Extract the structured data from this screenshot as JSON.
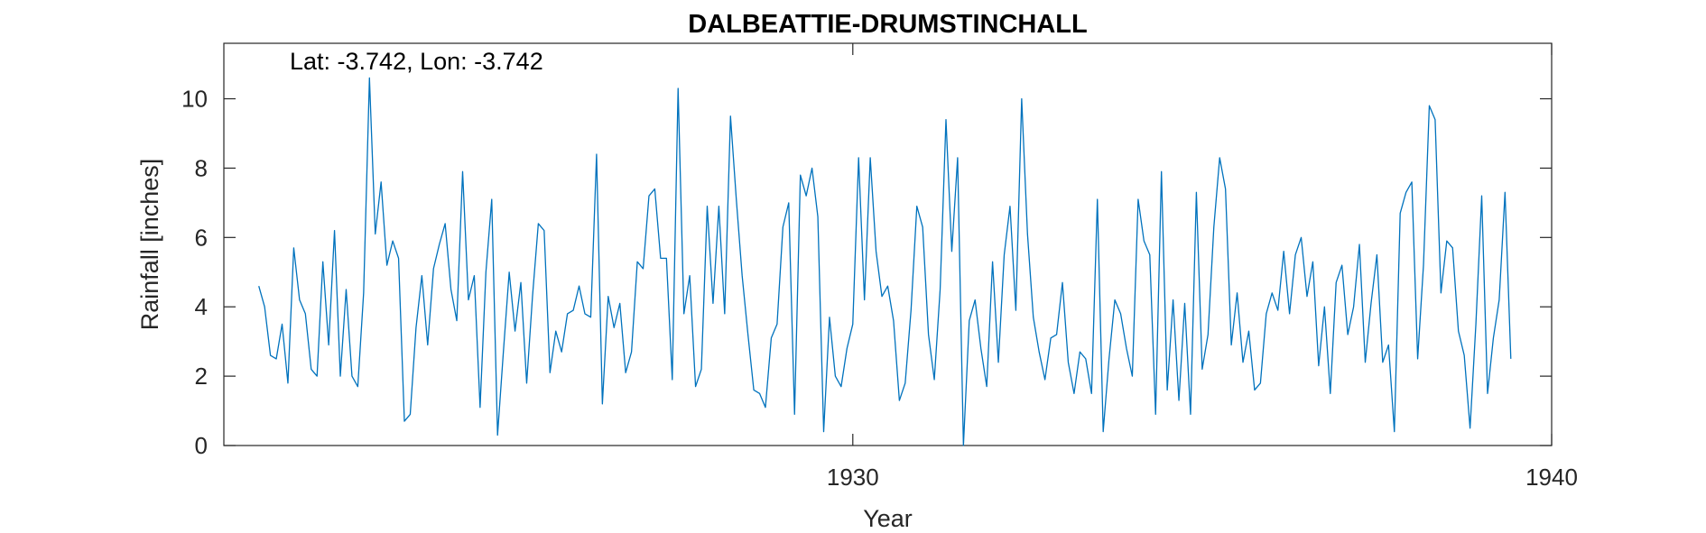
{
  "chart_data": {
    "type": "line",
    "title": "DALBEATTIE-DRUMSTINCHALL",
    "xlabel": "Year",
    "ylabel": "Rainfall [inches]",
    "annotation": "Lat: -3.742, Lon: -3.742",
    "xlim": [
      1921.0,
      1940.0
    ],
    "ylim": [
      0,
      11.6
    ],
    "xticks": [
      1930,
      1940
    ],
    "yticks": [
      0,
      2,
      4,
      6,
      8,
      10
    ],
    "grid": false,
    "legend": "none",
    "line_color": "#0072BD",
    "x_start": 1921.5,
    "x_step": 0.08333,
    "series": [
      {
        "values": [
          4.6,
          4.0,
          2.6,
          2.5,
          3.5,
          1.8,
          5.7,
          4.2,
          3.8,
          2.2,
          2.0,
          5.3,
          2.9,
          6.2,
          2.0,
          4.5,
          2.0,
          1.7,
          4.4,
          10.6,
          6.1,
          7.6,
          5.2,
          5.9,
          5.4,
          0.7,
          0.9,
          3.4,
          4.9,
          2.9,
          5.1,
          5.8,
          6.4,
          4.5,
          3.6,
          7.9,
          4.2,
          4.9,
          1.1,
          5.0,
          7.1,
          0.3,
          2.7,
          5.0,
          3.3,
          4.7,
          1.8,
          4.3,
          6.4,
          6.2,
          2.1,
          3.3,
          2.7,
          3.8,
          3.9,
          4.6,
          3.8,
          3.7,
          8.4,
          1.2,
          4.3,
          3.4,
          4.1,
          2.1,
          2.7,
          5.3,
          5.1,
          7.2,
          7.4,
          5.4,
          5.4,
          1.9,
          10.3,
          3.8,
          4.9,
          1.7,
          2.2,
          6.9,
          4.1,
          6.9,
          3.8,
          9.5,
          7.1,
          4.9,
          3.2,
          1.6,
          1.5,
          1.1,
          3.1,
          3.5,
          6.3,
          7.0,
          0.9,
          7.8,
          7.2,
          8.0,
          6.6,
          0.4,
          3.7,
          2.0,
          1.7,
          2.8,
          3.5,
          8.3,
          4.2,
          8.3,
          5.6,
          4.3,
          4.6,
          3.6,
          1.3,
          1.8,
          3.9,
          6.9,
          6.3,
          3.2,
          1.9,
          4.5,
          9.4,
          5.6,
          8.3,
          0.0,
          3.6,
          4.2,
          2.8,
          1.7,
          5.3,
          2.4,
          5.5,
          6.9,
          3.9,
          10.0,
          6.1,
          3.7,
          2.7,
          1.9,
          3.1,
          3.2,
          4.7,
          2.4,
          1.5,
          2.7,
          2.5,
          1.5,
          7.1,
          0.4,
          2.5,
          4.2,
          3.8,
          2.8,
          2.0,
          7.1,
          5.9,
          5.5,
          0.9,
          7.9,
          1.6,
          4.2,
          1.3,
          4.1,
          0.9,
          7.3,
          2.2,
          3.2,
          6.3,
          8.3,
          7.4,
          2.9,
          4.4,
          2.4,
          3.3,
          1.6,
          1.8,
          3.8,
          4.4,
          3.9,
          5.6,
          3.8,
          5.5,
          6.0,
          4.3,
          5.3,
          2.3,
          4.0,
          1.5,
          4.7,
          5.2,
          3.2,
          4.0,
          5.8,
          2.4,
          4.1,
          5.5,
          2.4,
          2.9,
          0.4,
          6.7,
          7.3,
          7.6,
          2.5,
          5.2,
          9.8,
          9.4,
          4.4,
          5.9,
          5.7,
          3.3,
          2.6,
          0.5,
          3.5,
          7.2,
          1.5,
          3.1,
          4.2,
          7.3,
          2.5
        ]
      }
    ]
  }
}
